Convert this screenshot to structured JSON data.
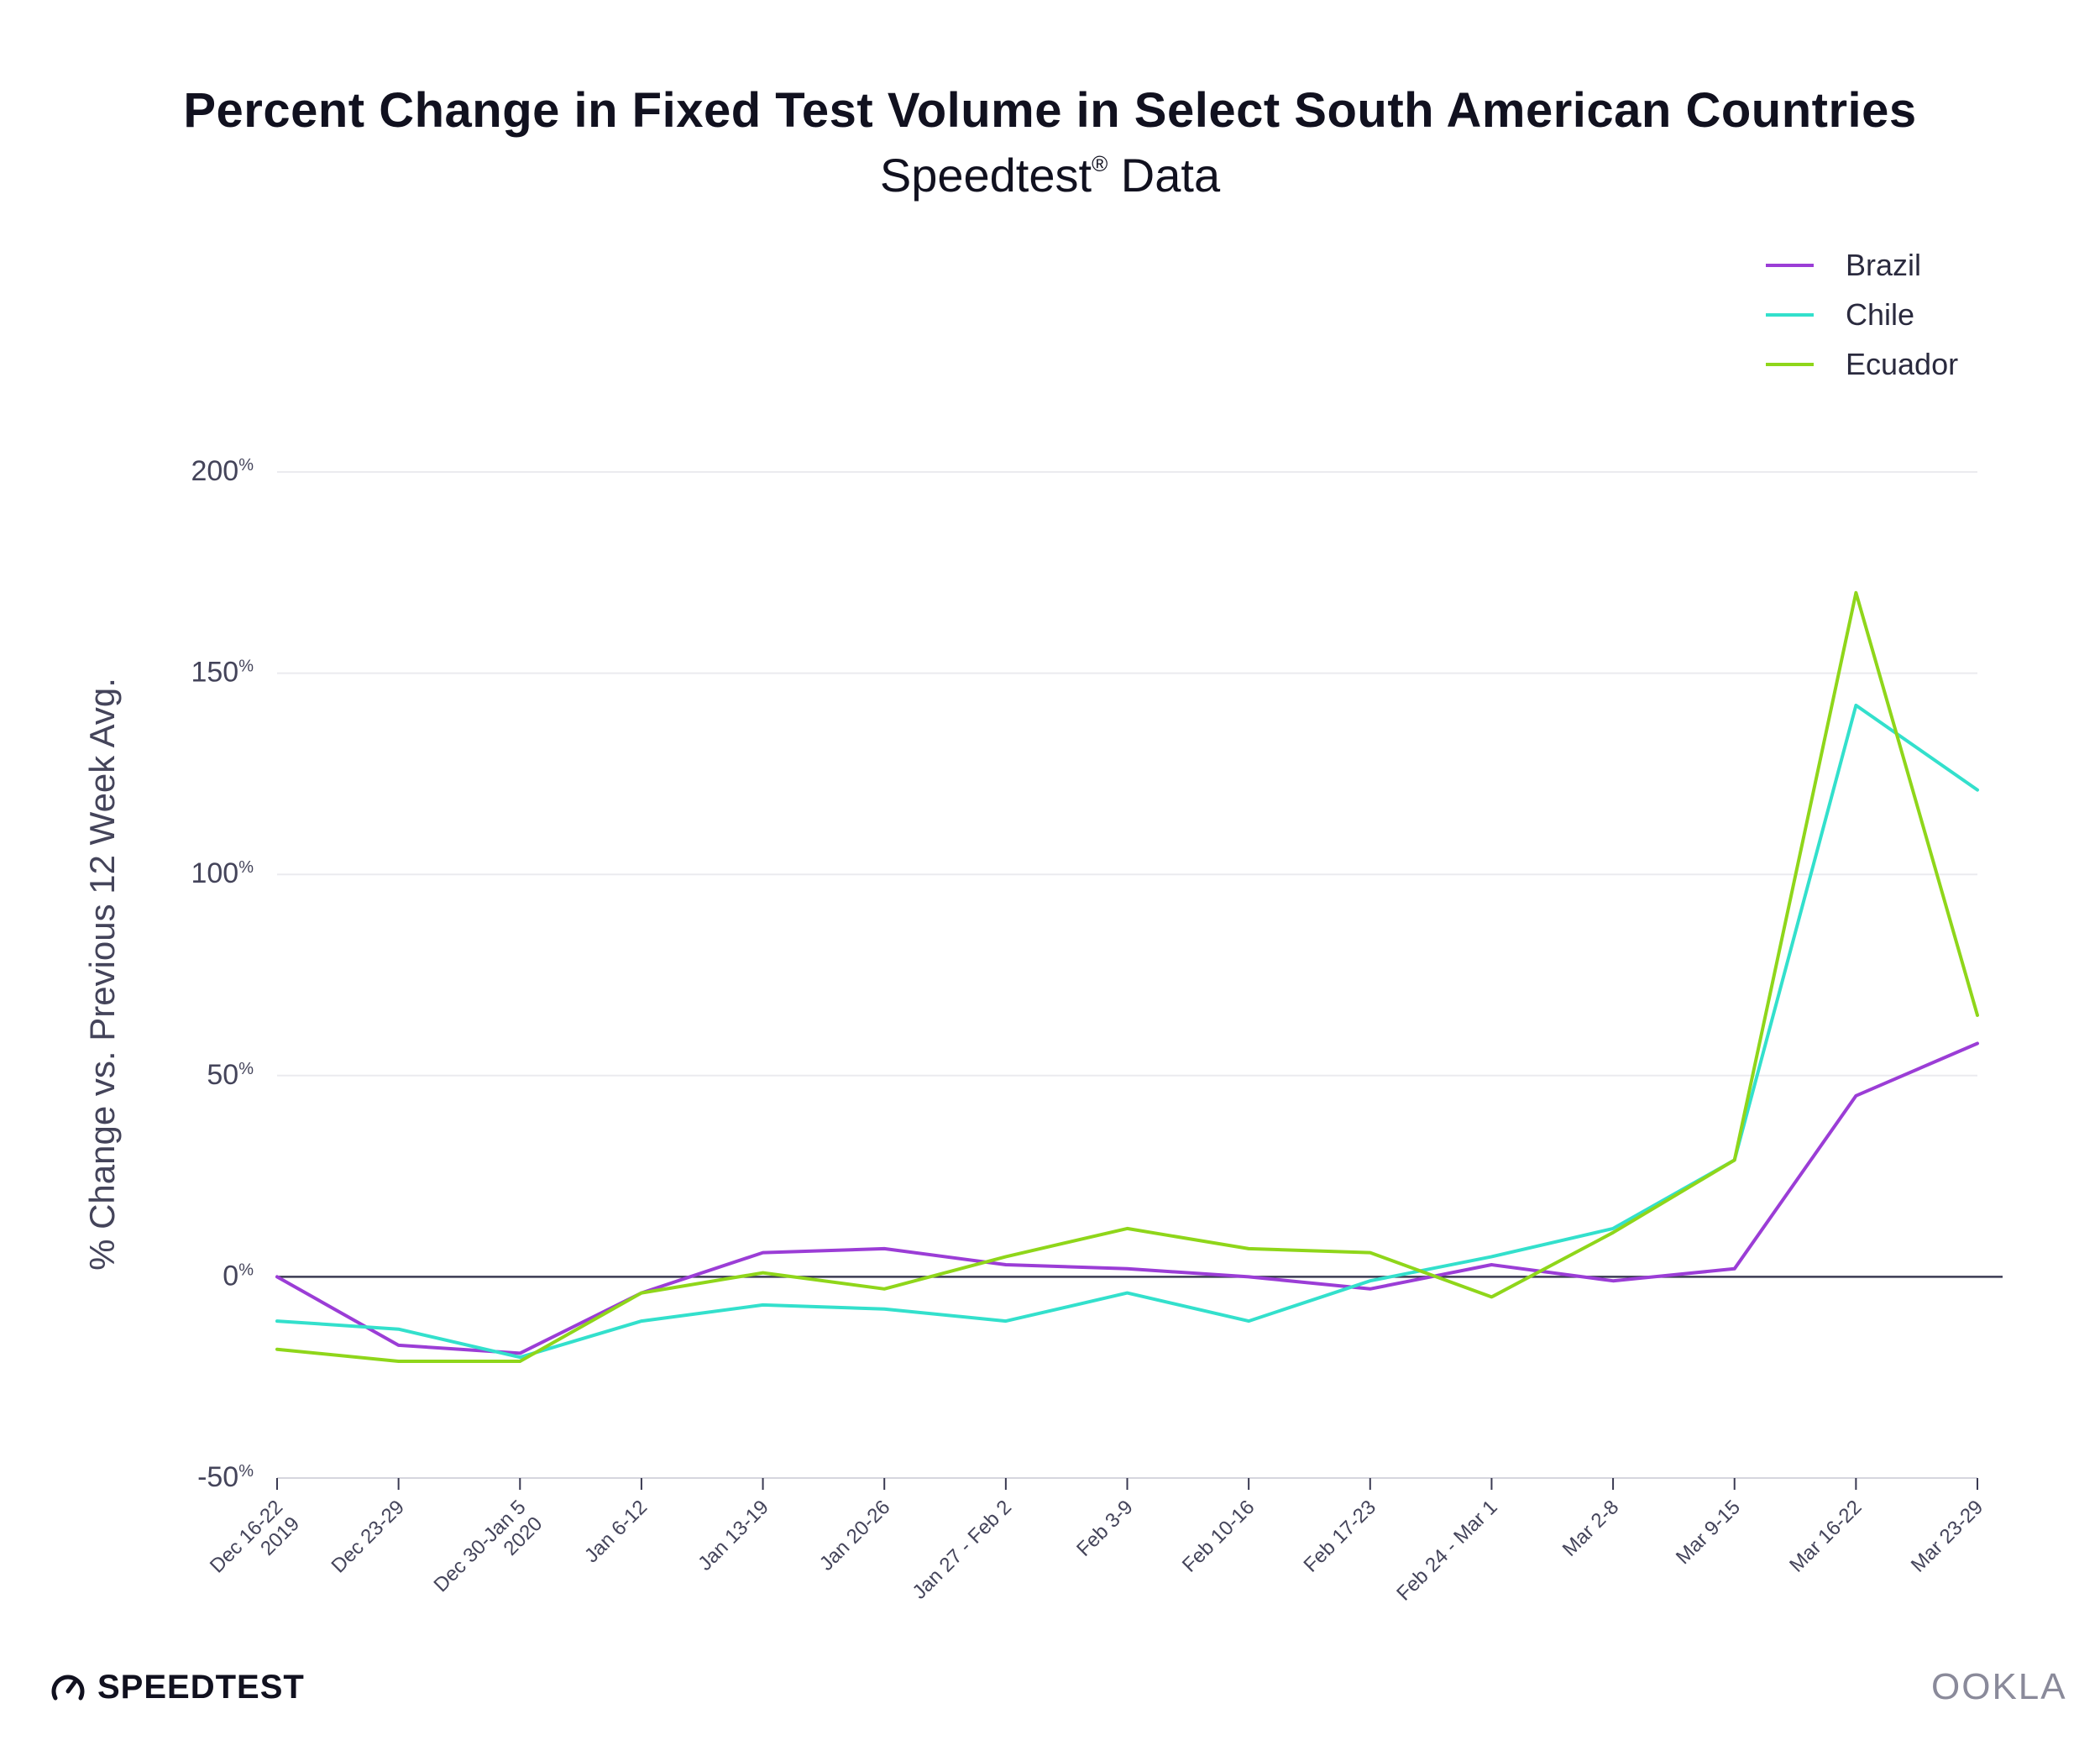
{
  "header": {
    "title": "Percent Change in Fixed Test Volume in Select South American Countries",
    "subtitle": "Speedtest",
    "subtitle_mark": "®",
    "subtitle_tail": " Data"
  },
  "footer": {
    "left_brand": "SPEEDTEST",
    "left_brand_mark": "®",
    "right_brand": "OOKLA",
    "left_icon": "speedometer-icon"
  },
  "chart_data": {
    "type": "line",
    "title": "Percent Change in Fixed Test Volume in Select South American Countries",
    "subtitle": "Speedtest® Data",
    "xlabel": "",
    "ylabel": "% Change vs. Previous 12 Week Avg.",
    "ylim": [
      -50,
      200
    ],
    "yticks": [
      -50,
      0,
      50,
      100,
      150,
      200
    ],
    "ytick_unit": "%",
    "grid": true,
    "legend_position": "top-right",
    "categories": [
      [
        "Dec 16-22",
        "2019"
      ],
      [
        "Dec 23-29"
      ],
      [
        "Dec 30-Jan 5",
        "2020"
      ],
      [
        "Jan 6-12"
      ],
      [
        "Jan 13-19"
      ],
      [
        "Jan 20-26"
      ],
      [
        "Jan 27 - Feb 2"
      ],
      [
        "Feb 3-9"
      ],
      [
        "Feb 10-16"
      ],
      [
        "Feb 17-23"
      ],
      [
        "Feb 24 - Mar 1"
      ],
      [
        "Mar 2-8"
      ],
      [
        "Mar 9-15"
      ],
      [
        "Mar 16-22"
      ],
      [
        "Mar 23-29"
      ]
    ],
    "series": [
      {
        "name": "Brazil",
        "color": "#9b3dd6",
        "values": [
          0,
          -17,
          -19,
          -4,
          6,
          7,
          3,
          2,
          0,
          -3,
          3,
          -1,
          2,
          45,
          58
        ]
      },
      {
        "name": "Chile",
        "color": "#33e0cc",
        "values": [
          -11,
          -13,
          -20,
          -11,
          -7,
          -8,
          -11,
          -4,
          -11,
          -1,
          5,
          12,
          29,
          142,
          121
        ]
      },
      {
        "name": "Ecuador",
        "color": "#8fd61a",
        "values": [
          -18,
          -21,
          -21,
          -4,
          1,
          -3,
          5,
          12,
          7,
          6,
          -5,
          11,
          29,
          170,
          65
        ]
      }
    ]
  }
}
